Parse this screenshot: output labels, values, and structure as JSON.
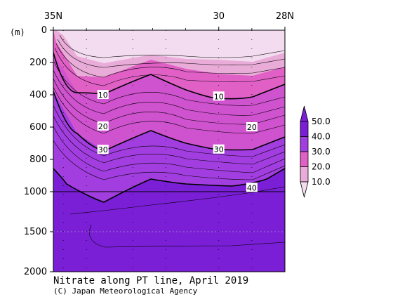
{
  "chart_data": {
    "type": "contour-section",
    "title": "Nitrate along PT line, April 2019",
    "credit": "(C) Japan Meteorological Agency",
    "x_axis": {
      "ticks": [
        {
          "label": "35N",
          "lat": 35
        },
        {
          "label": "30",
          "lat": 30
        },
        {
          "label": "28N",
          "lat": 28
        }
      ],
      "range": [
        35,
        28
      ]
    },
    "y_axis": {
      "unit": "(m)",
      "ticks": [
        0,
        200,
        400,
        600,
        800,
        1000,
        1500,
        2000
      ],
      "upper_segment": [
        0,
        1000
      ],
      "lower_segment": [
        1000,
        2000
      ]
    },
    "stations_lat": [
      34.7,
      34.0,
      32.6,
      31.6,
      30.0,
      29.0,
      28.0
    ],
    "contour_labels": [
      {
        "text": "10",
        "lat": 33.5,
        "depth": 400
      },
      {
        "text": "10",
        "lat": 30.0,
        "depth": 410
      },
      {
        "text": "20",
        "lat": 33.5,
        "depth": 595
      },
      {
        "text": "20",
        "lat": 29.0,
        "depth": 600
      },
      {
        "text": "30",
        "lat": 33.5,
        "depth": 740
      },
      {
        "text": "30",
        "lat": 30.0,
        "depth": 738
      },
      {
        "text": "40",
        "lat": 29.0,
        "depth": 975
      }
    ],
    "legend": {
      "levels": [
        "10.0",
        "20.0",
        "30.0",
        "40.0",
        "50.0"
      ],
      "colors": [
        "#f3dcef",
        "#e9acd8",
        "#e060c6",
        "#a23ee0",
        "#7a1fd6"
      ]
    }
  }
}
